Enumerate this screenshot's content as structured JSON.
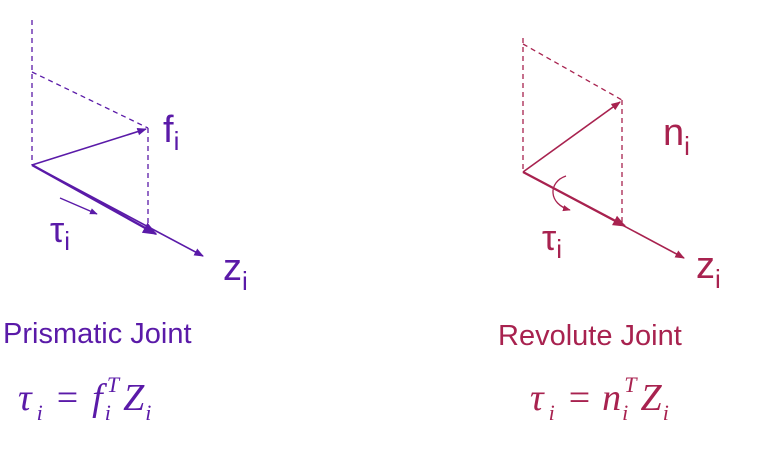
{
  "colors": {
    "prismatic": "#5a1aa8",
    "revolute": "#a8224f",
    "background": "#ffffff"
  },
  "prismatic": {
    "force_label": {
      "base": "f",
      "sub": "i"
    },
    "torque_label": {
      "base": "τ",
      "sub": "i"
    },
    "axis_label": {
      "base": "z",
      "sub": "i"
    },
    "title": "Prismatic Joint",
    "formula": {
      "lhs": "τ",
      "lhs_sub": "i",
      "eq": "=",
      "f": "f",
      "f_sub": "i",
      "sup": "T",
      "z": "Z",
      "z_sub": "i"
    }
  },
  "revolute": {
    "moment_label": {
      "base": "n",
      "sub": "i"
    },
    "torque_label": {
      "base": "τ",
      "sub": "i"
    },
    "axis_label": {
      "base": "z",
      "sub": "i"
    },
    "title": "Revolute Joint",
    "formula": {
      "lhs": "τ",
      "lhs_sub": "i",
      "eq": "=",
      "n": "n",
      "n_sub": "i",
      "sup": "T",
      "z": "Z",
      "z_sub": "i"
    }
  }
}
